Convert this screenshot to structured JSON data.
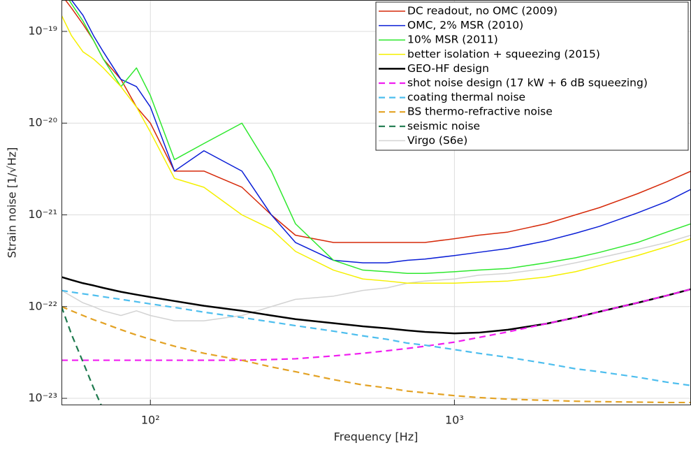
{
  "chart_data": {
    "type": "line",
    "xlabel": "Frequency [Hz]",
    "ylabel": "Strain noise [1/√Hz]",
    "log_x": true,
    "log_y": true,
    "grid": true,
    "legend": "top-right",
    "xlim": [
      51,
      6000
    ],
    "ylim": [
      8.4e-24,
      2.2e-19
    ],
    "xticks": [
      {
        "value": 100,
        "label": "10²"
      },
      {
        "value": 1000,
        "label": "10³"
      }
    ],
    "yticks": [
      {
        "value": 1e-23,
        "label": "10⁻²³"
      },
      {
        "value": 1e-22,
        "label": "10⁻²²"
      },
      {
        "value": 1e-21,
        "label": "10⁻²¹"
      },
      {
        "value": 1e-20,
        "label": "10⁻²⁰"
      },
      {
        "value": 1e-19,
        "label": "10⁻¹⁹"
      }
    ],
    "x": [
      51,
      55,
      60,
      65,
      70,
      80,
      90,
      100,
      120,
      150,
      200,
      250,
      300,
      400,
      500,
      600,
      700,
      800,
      1000,
      1200,
      1500,
      2000,
      2500,
      3000,
      4000,
      5000,
      6000
    ],
    "series": [
      {
        "name": "DC readout, no OMC (2009)",
        "color": "#d62a0a",
        "dashed": false,
        "width": 1.5,
        "values": [
          2.5e-19,
          1.8e-19,
          1.2e-19,
          8e-20,
          5e-20,
          3e-20,
          1.5e-20,
          1e-20,
          3e-21,
          3e-21,
          2e-21,
          1e-21,
          6e-22,
          5e-22,
          5e-22,
          5e-22,
          5e-22,
          5e-22,
          5.5e-22,
          6e-22,
          6.5e-22,
          8e-22,
          1e-21,
          1.2e-21,
          1.7e-21,
          2.3e-21,
          3e-21
        ]
      },
      {
        "name": "OMC, 2% MSR (2010)",
        "color": "#0a1ed6",
        "dashed": false,
        "width": 1.5,
        "values": [
          3e-19,
          2.2e-19,
          1.5e-19,
          9e-20,
          6e-20,
          3e-20,
          2.5e-20,
          1.5e-20,
          3e-21,
          5e-21,
          3e-21,
          1e-21,
          5e-22,
          3.2e-22,
          3e-22,
          3e-22,
          3.2e-22,
          3.3e-22,
          3.6e-22,
          3.9e-22,
          4.3e-22,
          5.2e-22,
          6.3e-22,
          7.5e-22,
          1.05e-21,
          1.4e-21,
          1.9e-21
        ]
      },
      {
        "name": "10% MSR (2011)",
        "color": "#2ee82e",
        "dashed": false,
        "width": 1.5,
        "values": [
          3e-19,
          2e-19,
          1.3e-19,
          8e-20,
          5e-20,
          2.5e-20,
          4e-20,
          2e-20,
          4e-21,
          6e-21,
          1e-20,
          3e-21,
          8e-22,
          3.2e-22,
          2.5e-22,
          2.4e-22,
          2.3e-22,
          2.3e-22,
          2.4e-22,
          2.5e-22,
          2.6e-22,
          3e-22,
          3.4e-22,
          3.9e-22,
          5e-22,
          6.5e-22,
          8e-22
        ]
      },
      {
        "name": "better isolation + squeezing (2015)",
        "color": "#f5f000",
        "dashed": false,
        "width": 1.5,
        "values": [
          1.5e-19,
          9e-20,
          6e-20,
          5e-20,
          4e-20,
          2.5e-20,
          1.5e-20,
          8e-21,
          2.5e-21,
          2e-21,
          1e-21,
          7e-22,
          4e-22,
          2.5e-22,
          2e-22,
          1.9e-22,
          1.8e-22,
          1.8e-22,
          1.8e-22,
          1.85e-22,
          1.9e-22,
          2.1e-22,
          2.4e-22,
          2.8e-22,
          3.6e-22,
          4.5e-22,
          5.5e-22
        ]
      },
      {
        "name": "GEO-HF design",
        "color": "#000000",
        "dashed": false,
        "width": 2.5,
        "values": [
          2.1e-22,
          1.95e-22,
          1.8e-22,
          1.7e-22,
          1.6e-22,
          1.45e-22,
          1.35e-22,
          1.27e-22,
          1.15e-22,
          1.02e-22,
          9e-23,
          8e-23,
          7.3e-23,
          6.6e-23,
          6.1e-23,
          5.8e-23,
          5.5e-23,
          5.3e-23,
          5.1e-23,
          5.2e-23,
          5.6e-23,
          6.5e-23,
          7.6e-23,
          8.8e-23,
          1.1e-22,
          1.32e-22,
          1.55e-22
        ]
      },
      {
        "name": "shot noise design (17 kW + 6 dB squeezing)",
        "color": "#f01ef0",
        "dashed": true,
        "width": 2.2,
        "values": [
          2.6e-23,
          2.6e-23,
          2.6e-23,
          2.6e-23,
          2.6e-23,
          2.6e-23,
          2.6e-23,
          2.6e-23,
          2.6e-23,
          2.6e-23,
          2.6e-23,
          2.65e-23,
          2.7e-23,
          2.9e-23,
          3.1e-23,
          3.3e-23,
          3.5e-23,
          3.7e-23,
          4.1e-23,
          4.6e-23,
          5.3e-23,
          6.5e-23,
          7.6e-23,
          8.8e-23,
          1.1e-22,
          1.32e-22,
          1.55e-22
        ]
      },
      {
        "name": "coating thermal noise",
        "color": "#4dbeee",
        "dashed": true,
        "width": 2.2,
        "values": [
          1.5e-22,
          1.44e-22,
          1.38e-22,
          1.33e-22,
          1.28e-22,
          1.2e-22,
          1.13e-22,
          1.07e-22,
          9.8e-23,
          8.7e-23,
          7.6e-23,
          6.8e-23,
          6.2e-23,
          5.4e-23,
          4.8e-23,
          4.4e-23,
          4e-23,
          3.8e-23,
          3.4e-23,
          3.1e-23,
          2.8e-23,
          2.4e-23,
          2.1e-23,
          1.95e-23,
          1.7e-23,
          1.5e-23,
          1.38e-23
        ]
      },
      {
        "name": "BS thermo-refractive noise",
        "color": "#e3a224",
        "dashed": true,
        "width": 2.2,
        "values": [
          1e-22,
          9e-23,
          8e-23,
          7.2e-23,
          6.6e-23,
          5.6e-23,
          4.9e-23,
          4.4e-23,
          3.7e-23,
          3.1e-23,
          2.6e-23,
          2.2e-23,
          1.95e-23,
          1.6e-23,
          1.4e-23,
          1.3e-23,
          1.2e-23,
          1.15e-23,
          1.07e-23,
          1.02e-23,
          9.8e-24,
          9.5e-24,
          9.3e-24,
          9.2e-24,
          9.1e-24,
          9e-24,
          9e-24
        ]
      },
      {
        "name": "seismic noise",
        "color": "#1e7a4e",
        "dashed": true,
        "width": 2.2,
        "values": [
          1e-22,
          5e-23,
          2.5e-23,
          1.3e-23,
          7.5e-24,
          null,
          null,
          null,
          null,
          null,
          null,
          null,
          null,
          null,
          null,
          null,
          null,
          null,
          null,
          null,
          null,
          null,
          null,
          null,
          null,
          null,
          null
        ]
      },
      {
        "name": "Virgo (S6e)",
        "color": "#d3d3d3",
        "dashed": false,
        "width": 1.5,
        "values": [
          1.5e-22,
          1.3e-22,
          1.1e-22,
          1e-22,
          9e-23,
          8e-23,
          9e-23,
          8e-23,
          7e-23,
          7e-23,
          8e-23,
          1e-22,
          1.2e-22,
          1.3e-22,
          1.5e-22,
          1.6e-22,
          1.8e-22,
          1.9e-22,
          2e-22,
          2.2e-22,
          2.3e-22,
          2.6e-22,
          3e-22,
          3.4e-22,
          4.2e-22,
          5e-22,
          6e-22
        ]
      }
    ]
  }
}
